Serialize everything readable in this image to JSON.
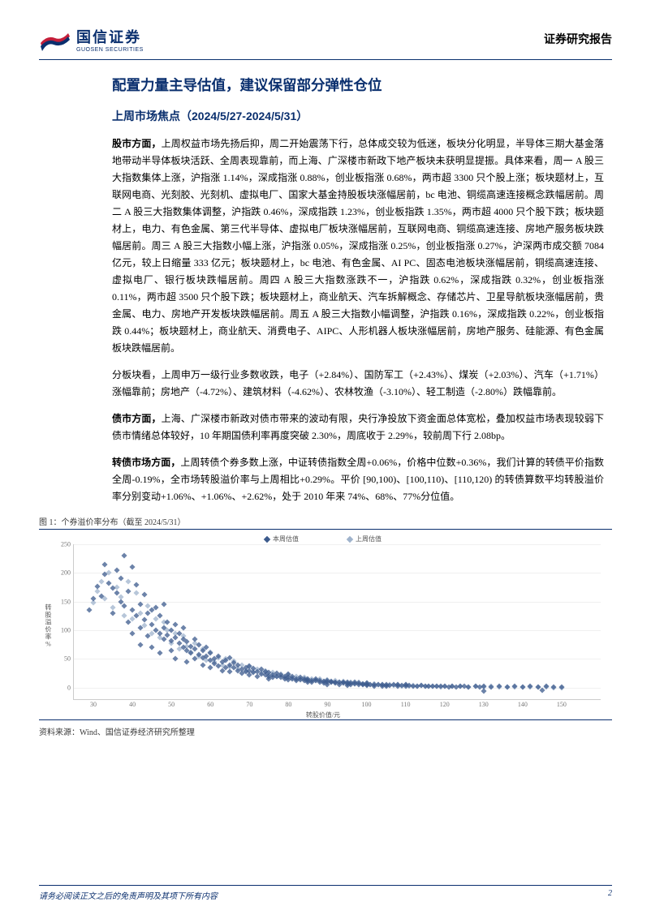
{
  "header": {
    "logo_cn": "国信证券",
    "logo_en": "GUOSEN SECURITIES",
    "report_type": "证券研究报告"
  },
  "title_main": "配置力量主导估值，建议保留部分弹性仓位",
  "title_sub": "上周市场焦点（2024/5/27-2024/5/31）",
  "paragraphs": {
    "p1_lead": "股市方面，",
    "p1_body": "上周权益市场先扬后抑，周二开始震荡下行，总体成交较为低迷，板块分化明显，半导体三期大基金落地带动半导体板块活跃、全周表现靠前，而上海、广深楼市新政下地产板块未获明显提振。具体来看，周一 A 股三大指数集体上涨，沪指涨 1.14%，深成指涨 0.88%，创业板指涨 0.68%，两市超 3300 只个股上涨；板块题材上，互联网电商、光刻胶、光刻机、虚拟电厂、国家大基金持股板块涨幅居前，bc 电池、铜缆高速连接概念跌幅居前。周二 A 股三大指数集体调整，沪指跌 0.46%，深成指跌 1.23%，创业板指跌 1.35%，两市超 4000 只个股下跌；板块题材上，电力、有色金属、第三代半导体、虚拟电厂板块涨幅居前，互联网电商、铜缆高速连接、房地产服务板块跌幅居前。周三 A 股三大指数小幅上涨，沪指涨 0.05%，深成指涨 0.25%，创业板指涨 0.27%，沪深两市成交额 7084 亿元，较上日缩量 333 亿元；板块题材上，bc 电池、有色金属、AI PC、固态电池板块涨幅居前，铜缆高速连接、虚拟电厂、银行板块跌幅居前。周四 A 股三大指数涨跌不一，沪指跌 0.62%，深成指跌 0.32%，创业板指涨 0.11%，两市超 3500 只个股下跌；板块题材上，商业航天、汽车拆解概念、存储芯片、卫星导航板块涨幅居前，贵金属、电力、房地产开发板块跌幅居前。周五 A 股三大指数小幅调整，沪指跌 0.16%，深成指跌 0.22%，创业板指跌 0.44%；板块题材上，商业航天、消费电子、AIPC、人形机器人板块涨幅居前，房地产服务、硅能源、有色金属板块跌幅居前。",
    "p2_body": "分板块看，上周申万一级行业多数收跌，电子（+2.84%）、国防军工（+2.43%）、煤炭（+2.03%）、汽车（+1.71%）涨幅靠前；房地产（-4.72%）、建筑材料（-4.62%）、农林牧渔（-3.10%）、轻工制造（-2.80%）跌幅靠前。",
    "p3_lead": "债市方面，",
    "p3_body": "上海、广深楼市新政对债市带来的波动有限，央行净投放下资金面总体宽松，叠加权益市场表现较弱下债市情绪总体较好，10 年期国债利率再度突破 2.30%，周底收于 2.29%，较前周下行 2.08bp。",
    "p4_lead": "转债市场方面，",
    "p4_body": "上周转债个券多数上涨，中证转债指数全周+0.06%，价格中位数+0.36%，我们计算的转债平价指数全周-0.19%，全市场转股溢价率与上周相比+0.29%。平价 [90,100)、[100,110)、[110,120) 的转债算数平均转股溢价率分别变动+1.06%、+1.06%、+2.62%，处于 2010 年来 74%、68%、77%分位值。"
  },
  "chart": {
    "caption": "图 1：个券溢价率分布（截至 2024/5/31）",
    "source": "资料来源：Wind、国信证券经济研究所整理",
    "legend": {
      "this_week": "本周估值",
      "last_week": "上周估值"
    },
    "y_label": "转股溢价率%",
    "x_label": "转股价值/元",
    "ylim": [
      -20,
      250
    ],
    "xlim": [
      25,
      160
    ],
    "yticks": [
      0,
      50,
      100,
      150,
      200,
      250
    ],
    "xticks": [
      30,
      40,
      50,
      60,
      70,
      80,
      90,
      100,
      110,
      120,
      130,
      140,
      150
    ],
    "colors": {
      "this_week": "#3b5a8c",
      "last_week": "#9fb3cc",
      "grid": "#f0f0f0",
      "axis": "#cccccc",
      "tick_text": "#777777"
    },
    "marker": {
      "shape": "diamond",
      "size": 5,
      "opacity": 0.75
    },
    "series_this_week": [
      [
        29,
        136
      ],
      [
        30,
        155
      ],
      [
        31,
        176
      ],
      [
        32,
        160
      ],
      [
        33,
        198
      ],
      [
        33,
        215
      ],
      [
        34,
        182
      ],
      [
        35,
        174
      ],
      [
        35,
        130
      ],
      [
        36,
        205
      ],
      [
        36,
        165
      ],
      [
        37,
        190
      ],
      [
        37,
        150
      ],
      [
        38,
        142
      ],
      [
        38,
        230
      ],
      [
        39,
        115
      ],
      [
        39,
        168
      ],
      [
        40,
        135
      ],
      [
        40,
        210
      ],
      [
        40,
        95
      ],
      [
        41,
        125
      ],
      [
        41,
        180
      ],
      [
        42,
        145
      ],
      [
        42,
        105
      ],
      [
        42,
        75
      ],
      [
        43,
        118
      ],
      [
        43,
        162
      ],
      [
        44,
        130
      ],
      [
        44,
        90
      ],
      [
        45,
        135
      ],
      [
        45,
        110
      ],
      [
        45,
        70
      ],
      [
        46,
        100
      ],
      [
        46,
        140
      ],
      [
        47,
        95
      ],
      [
        47,
        125
      ],
      [
        47,
        60
      ],
      [
        48,
        105
      ],
      [
        48,
        85
      ],
      [
        48,
        145
      ],
      [
        49,
        92
      ],
      [
        49,
        115
      ],
      [
        50,
        82
      ],
      [
        50,
        100
      ],
      [
        50,
        65
      ],
      [
        51,
        88
      ],
      [
        51,
        110
      ],
      [
        51,
        50
      ],
      [
        52,
        78
      ],
      [
        52,
        95
      ],
      [
        53,
        70
      ],
      [
        53,
        85
      ],
      [
        53,
        105
      ],
      [
        54,
        65
      ],
      [
        54,
        80
      ],
      [
        54,
        45
      ],
      [
        55,
        72
      ],
      [
        55,
        60
      ],
      [
        56,
        68
      ],
      [
        56,
        85
      ],
      [
        56,
        50
      ],
      [
        57,
        58
      ],
      [
        57,
        75
      ],
      [
        58,
        52
      ],
      [
        58,
        65
      ],
      [
        58,
        40
      ],
      [
        59,
        55
      ],
      [
        59,
        70
      ],
      [
        60,
        48
      ],
      [
        60,
        60
      ],
      [
        60,
        35
      ],
      [
        61,
        50
      ],
      [
        61,
        42
      ],
      [
        62,
        55
      ],
      [
        62,
        38
      ],
      [
        63,
        45
      ],
      [
        63,
        30
      ],
      [
        64,
        48
      ],
      [
        64,
        35
      ],
      [
        65,
        40
      ],
      [
        65,
        28
      ],
      [
        65,
        52
      ],
      [
        66,
        35
      ],
      [
        66,
        44
      ],
      [
        67,
        30
      ],
      [
        67,
        40
      ],
      [
        68,
        32
      ],
      [
        68,
        25
      ],
      [
        69,
        35
      ],
      [
        69,
        28
      ],
      [
        70,
        30
      ],
      [
        70,
        22
      ],
      [
        70,
        38
      ],
      [
        71,
        26
      ],
      [
        71,
        34
      ],
      [
        72,
        28
      ],
      [
        72,
        20
      ],
      [
        73,
        24
      ],
      [
        73,
        32
      ],
      [
        74,
        22
      ],
      [
        74,
        28
      ],
      [
        75,
        20
      ],
      [
        75,
        26
      ],
      [
        75,
        15
      ],
      [
        76,
        22
      ],
      [
        76,
        18
      ],
      [
        77,
        20
      ],
      [
        77,
        25
      ],
      [
        78,
        18
      ],
      [
        78,
        22
      ],
      [
        79,
        16
      ],
      [
        79,
        20
      ],
      [
        80,
        18
      ],
      [
        80,
        14
      ],
      [
        80,
        24
      ],
      [
        81,
        15
      ],
      [
        81,
        20
      ],
      [
        82,
        16
      ],
      [
        82,
        12
      ],
      [
        83,
        14
      ],
      [
        83,
        18
      ],
      [
        84,
        13
      ],
      [
        84,
        16
      ],
      [
        85,
        12
      ],
      [
        85,
        15
      ],
      [
        85,
        9
      ],
      [
        86,
        13
      ],
      [
        86,
        10
      ],
      [
        87,
        12
      ],
      [
        87,
        15
      ],
      [
        88,
        10
      ],
      [
        88,
        13
      ],
      [
        89,
        11
      ],
      [
        89,
        8
      ],
      [
        90,
        10
      ],
      [
        90,
        12
      ],
      [
        90,
        6
      ],
      [
        91,
        9
      ],
      [
        91,
        11
      ],
      [
        92,
        8
      ],
      [
        92,
        10
      ],
      [
        93,
        9
      ],
      [
        93,
        6
      ],
      [
        94,
        8
      ],
      [
        94,
        10
      ],
      [
        95,
        7
      ],
      [
        95,
        9
      ],
      [
        95,
        4
      ],
      [
        96,
        8
      ],
      [
        96,
        5
      ],
      [
        97,
        7
      ],
      [
        97,
        9
      ],
      [
        98,
        6
      ],
      [
        98,
        8
      ],
      [
        99,
        5
      ],
      [
        99,
        7
      ],
      [
        100,
        6
      ],
      [
        100,
        4
      ],
      [
        100,
        8
      ],
      [
        101,
        5
      ],
      [
        102,
        6
      ],
      [
        102,
        3
      ],
      [
        103,
        5
      ],
      [
        104,
        6
      ],
      [
        104,
        3
      ],
      [
        105,
        5
      ],
      [
        105,
        2
      ],
      [
        106,
        4
      ],
      [
        107,
        5
      ],
      [
        108,
        3
      ],
      [
        108,
        6
      ],
      [
        109,
        4
      ],
      [
        110,
        3
      ],
      [
        110,
        5
      ],
      [
        111,
        4
      ],
      [
        112,
        3
      ],
      [
        113,
        2
      ],
      [
        114,
        4
      ],
      [
        115,
        3
      ],
      [
        116,
        2
      ],
      [
        117,
        3
      ],
      [
        118,
        2
      ],
      [
        119,
        3
      ],
      [
        120,
        2
      ],
      [
        121,
        1
      ],
      [
        122,
        2
      ],
      [
        123,
        1
      ],
      [
        124,
        3
      ],
      [
        125,
        2
      ],
      [
        126,
        1
      ],
      [
        128,
        2
      ],
      [
        129,
        1
      ],
      [
        130,
        2
      ],
      [
        132,
        1
      ],
      [
        134,
        2
      ],
      [
        136,
        1
      ],
      [
        138,
        2
      ],
      [
        140,
        1
      ],
      [
        142,
        2
      ],
      [
        144,
        1
      ],
      [
        146,
        2
      ],
      [
        148,
        1
      ],
      [
        150,
        1
      ],
      [
        145,
        -4
      ],
      [
        130,
        -6
      ]
    ],
    "series_last_week": [
      [
        30,
        148
      ],
      [
        31,
        168
      ],
      [
        32,
        185
      ],
      [
        33,
        155
      ],
      [
        34,
        200
      ],
      [
        35,
        140
      ],
      [
        36,
        175
      ],
      [
        37,
        158
      ],
      [
        38,
        125
      ],
      [
        39,
        185
      ],
      [
        40,
        120
      ],
      [
        41,
        165
      ],
      [
        42,
        130
      ],
      [
        43,
        108
      ],
      [
        44,
        142
      ],
      [
        45,
        95
      ],
      [
        46,
        120
      ],
      [
        47,
        88
      ],
      [
        48,
        115
      ],
      [
        49,
        100
      ],
      [
        50,
        78
      ],
      [
        51,
        95
      ],
      [
        52,
        68
      ],
      [
        53,
        90
      ],
      [
        54,
        72
      ],
      [
        55,
        62
      ],
      [
        56,
        78
      ],
      [
        57,
        55
      ],
      [
        58,
        68
      ],
      [
        59,
        48
      ],
      [
        60,
        62
      ],
      [
        61,
        45
      ],
      [
        62,
        52
      ],
      [
        63,
        40
      ],
      [
        64,
        50
      ],
      [
        65,
        36
      ],
      [
        66,
        46
      ],
      [
        67,
        34
      ],
      [
        68,
        40
      ],
      [
        69,
        30
      ],
      [
        70,
        36
      ],
      [
        71,
        28
      ],
      [
        72,
        32
      ],
      [
        73,
        26
      ],
      [
        74,
        30
      ],
      [
        75,
        22
      ],
      [
        76,
        26
      ],
      [
        77,
        20
      ],
      [
        78,
        24
      ],
      [
        79,
        18
      ],
      [
        80,
        22
      ],
      [
        81,
        17
      ],
      [
        82,
        20
      ],
      [
        83,
        15
      ],
      [
        84,
        18
      ],
      [
        85,
        14
      ],
      [
        86,
        16
      ],
      [
        87,
        12
      ],
      [
        88,
        15
      ],
      [
        89,
        11
      ],
      [
        90,
        14
      ],
      [
        91,
        10
      ],
      [
        92,
        12
      ],
      [
        93,
        9
      ],
      [
        94,
        11
      ],
      [
        95,
        8
      ],
      [
        96,
        10
      ],
      [
        97,
        7
      ],
      [
        98,
        9
      ],
      [
        99,
        6
      ],
      [
        100,
        8
      ],
      [
        101,
        5
      ],
      [
        102,
        7
      ],
      [
        103,
        5
      ],
      [
        104,
        6
      ],
      [
        105,
        4
      ],
      [
        106,
        6
      ],
      [
        107,
        4
      ],
      [
        108,
        5
      ],
      [
        109,
        3
      ],
      [
        110,
        5
      ],
      [
        111,
        3
      ],
      [
        112,
        4
      ],
      [
        113,
        2
      ],
      [
        114,
        4
      ],
      [
        115,
        2
      ],
      [
        116,
        3
      ],
      [
        117,
        2
      ],
      [
        118,
        3
      ],
      [
        119,
        1
      ],
      [
        120,
        3
      ],
      [
        122,
        2
      ],
      [
        124,
        2
      ],
      [
        126,
        1
      ],
      [
        128,
        2
      ],
      [
        130,
        1
      ],
      [
        132,
        2
      ],
      [
        134,
        1
      ],
      [
        136,
        1
      ],
      [
        138,
        1
      ],
      [
        140,
        1
      ],
      [
        142,
        1
      ],
      [
        144,
        1
      ],
      [
        146,
        1
      ],
      [
        148,
        0
      ],
      [
        150,
        0
      ]
    ]
  },
  "footer": {
    "notice": "请务必阅读正文之后的免责声明及其项下所有内容",
    "page_number": "2"
  }
}
